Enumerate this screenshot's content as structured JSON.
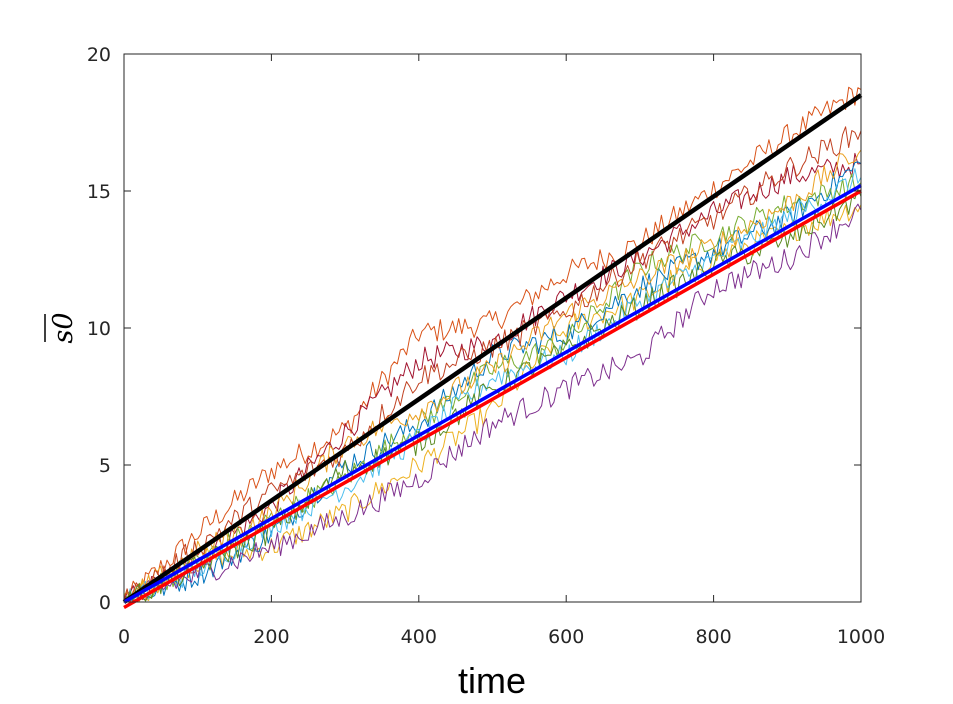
{
  "chart_data": {
    "type": "line",
    "title": "",
    "xlabel": "time",
    "ylabel": "s0",
    "ylabel_overline": true,
    "xlim": [
      0,
      1000
    ],
    "ylim": [
      0,
      20
    ],
    "x_ticks": [
      0,
      200,
      400,
      600,
      800,
      1000
    ],
    "x_tick_labels": [
      "0",
      "200",
      "400",
      "600",
      "800",
      "1000"
    ],
    "y_ticks": [
      0,
      5,
      10,
      15,
      20
    ],
    "y_tick_labels": [
      "0",
      "5",
      "10",
      "15",
      "20"
    ],
    "grid": false,
    "legend": "none",
    "series": [
      {
        "color": "#000000",
        "width": 4.5,
        "x": [
          0,
          1000
        ],
        "y": [
          0,
          18.5
        ]
      },
      {
        "color": "#0000ff",
        "width": 3.5,
        "x": [
          0,
          1000
        ],
        "y": [
          0,
          15.2
        ]
      },
      {
        "color": "#ff0000",
        "width": 3.5,
        "x": [
          0,
          1000
        ],
        "y": [
          -0.2,
          15.0
        ]
      },
      {
        "color": "#d95319",
        "width": 1,
        "x": [
          0,
          100,
          200,
          300,
          400,
          500,
          600,
          700,
          800,
          900,
          1000
        ],
        "y": [
          0,
          2.5,
          4.8,
          6.3,
          9.8,
          10.2,
          12.0,
          13.1,
          15.1,
          17.0,
          18.7
        ]
      },
      {
        "color": "#a2142f",
        "width": 1,
        "x": [
          0,
          100,
          200,
          300,
          400,
          500,
          600,
          700,
          800,
          900,
          1000
        ],
        "y": [
          0,
          1.5,
          3.5,
          6.2,
          8.8,
          9.5,
          11.2,
          12.6,
          14.2,
          15.5,
          16.0
        ]
      },
      {
        "color": "#edb120",
        "width": 1,
        "x": [
          0,
          100,
          200,
          300,
          400,
          500,
          600,
          700,
          800,
          900,
          1000
        ],
        "y": [
          0,
          1.5,
          2.0,
          3.3,
          5.0,
          7.0,
          10.0,
          11.1,
          12.6,
          13.5,
          14.5
        ]
      },
      {
        "color": "#0072bd",
        "width": 1,
        "x": [
          0,
          100,
          200,
          300,
          400,
          500,
          600,
          700,
          800,
          900,
          1000
        ],
        "y": [
          0,
          1.0,
          2.5,
          5.0,
          6.5,
          9.0,
          9.8,
          11.5,
          12.8,
          14.0,
          16.0
        ]
      },
      {
        "color": "#77ac30",
        "width": 1,
        "x": [
          0,
          100,
          200,
          300,
          400,
          500,
          600,
          700,
          800,
          900,
          1000
        ],
        "y": [
          0,
          1.5,
          3.0,
          4.5,
          6.5,
          8.5,
          9.5,
          12.2,
          13.3,
          14.5,
          15.3
        ]
      },
      {
        "color": "#4dbeee",
        "width": 1,
        "x": [
          0,
          100,
          200,
          300,
          400,
          500,
          600,
          700,
          800,
          900,
          1000
        ],
        "y": [
          0,
          1.2,
          2.8,
          4.2,
          6.0,
          8.2,
          9.0,
          11.0,
          12.5,
          14.0,
          15.5
        ]
      },
      {
        "color": "#7e2f8e",
        "width": 1,
        "x": [
          0,
          100,
          200,
          300,
          400,
          500,
          600,
          700,
          800,
          900,
          1000
        ],
        "y": [
          0,
          1.0,
          2.0,
          3.1,
          4.5,
          6.5,
          7.8,
          8.9,
          11.5,
          12.5,
          14.3
        ]
      },
      {
        "color": "#eba020",
        "width": 1,
        "x": [
          0,
          100,
          200,
          300,
          400,
          500,
          600,
          700,
          800,
          900,
          1000
        ],
        "y": [
          0,
          1.8,
          3.2,
          5.8,
          7.0,
          8.5,
          10.5,
          11.8,
          13.0,
          14.5,
          16.5
        ]
      },
      {
        "color": "#c04020",
        "width": 1,
        "x": [
          0,
          100,
          200,
          300,
          400,
          500,
          600,
          700,
          800,
          900,
          1000
        ],
        "y": [
          0,
          2.0,
          4.0,
          5.5,
          8.2,
          9.3,
          10.6,
          12.5,
          14.0,
          15.8,
          17.2
        ]
      },
      {
        "color": "#5a8a20",
        "width": 1,
        "x": [
          0,
          100,
          200,
          300,
          400,
          500,
          600,
          700,
          800,
          900,
          1000
        ],
        "y": [
          0,
          1.3,
          2.6,
          4.8,
          5.8,
          7.8,
          9.2,
          10.8,
          12.3,
          13.2,
          14.8
        ]
      }
    ]
  }
}
